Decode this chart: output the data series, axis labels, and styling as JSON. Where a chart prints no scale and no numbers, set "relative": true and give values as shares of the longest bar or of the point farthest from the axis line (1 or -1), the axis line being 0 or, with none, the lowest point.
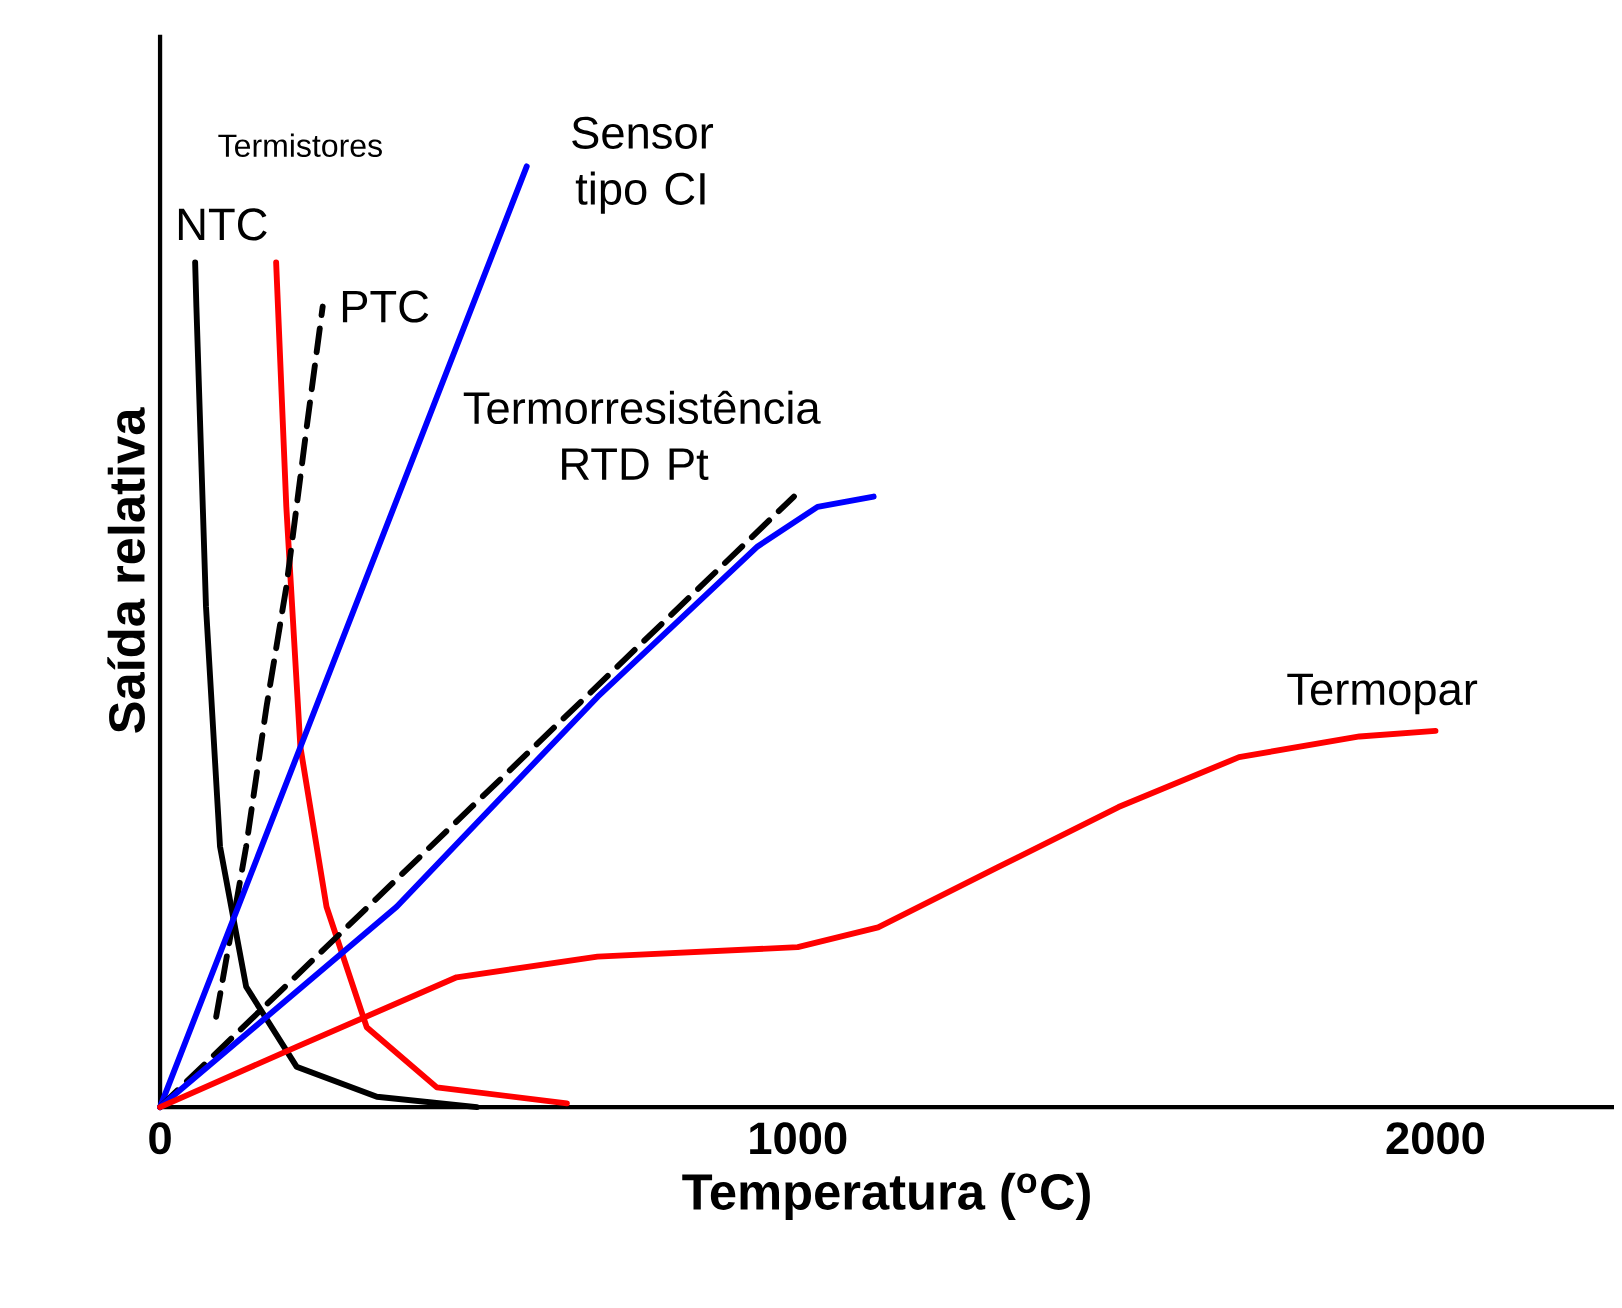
{
  "chart_data": {
    "type": "line",
    "relative": true,
    "xlabel": "Temperatura ($^{o}$C)",
    "ylabel": "Saída relativa",
    "xlim": [
      0,
      2280
    ],
    "xticks": [
      0,
      1000,
      2000
    ],
    "tick_labels": "x",
    "grid": false,
    "marker": "none",
    "annotations": [
      "Termistores"
    ],
    "series": [
      {
        "name": "NTC",
        "color": "#000000",
        "line_style": "solid",
        "x": [
          55,
          57,
          72,
          94,
          135,
          214,
          340,
          497
        ],
        "values": [
          0.898,
          0.85,
          0.532,
          0.277,
          0.128,
          0.043,
          0.011,
          0.0
        ]
      },
      {
        "color": "#ff0000",
        "line_style": "solid",
        "x": [
          182,
          198,
          220,
          261,
          324,
          434,
          638
        ],
        "values": [
          0.898,
          0.638,
          0.383,
          0.213,
          0.085,
          0.021,
          0.004
        ]
      },
      {
        "name": "PTC",
        "color": "#000000",
        "line_style": "dashed",
        "x": [
          88,
          135,
          167,
          198,
          230,
          255
        ],
        "values": [
          0.096,
          0.277,
          0.426,
          0.553,
          0.723,
          0.851
        ]
      },
      {
        "name": "Sensor tipo CI",
        "color": "#0000ff",
        "line_style": "solid",
        "x": [
          0,
          575
        ],
        "values": [
          0.0,
          1.0
        ]
      },
      {
        "color": "#000000",
        "line_style": "dashed",
        "x": [
          0,
          994
        ],
        "values": [
          0.0,
          0.649
        ]
      },
      {
        "name": "Termorresistência RTD Pt",
        "color": "#0000ff",
        "line_style": "solid",
        "x": [
          0,
          371,
          686,
          937,
          1031,
          1119
        ],
        "values": [
          0.0,
          0.213,
          0.436,
          0.596,
          0.638,
          0.649
        ]
      },
      {
        "name": "Termopar",
        "color": "#ff0000",
        "line_style": "solid",
        "x": [
          0,
          214,
          465,
          686,
          1000,
          1126,
          1314,
          1503,
          1692,
          1881,
          2000
        ],
        "values": [
          0.0,
          0.064,
          0.138,
          0.16,
          0.17,
          0.191,
          0.255,
          0.319,
          0.372,
          0.394,
          0.4
        ]
      }
    ]
  }
}
